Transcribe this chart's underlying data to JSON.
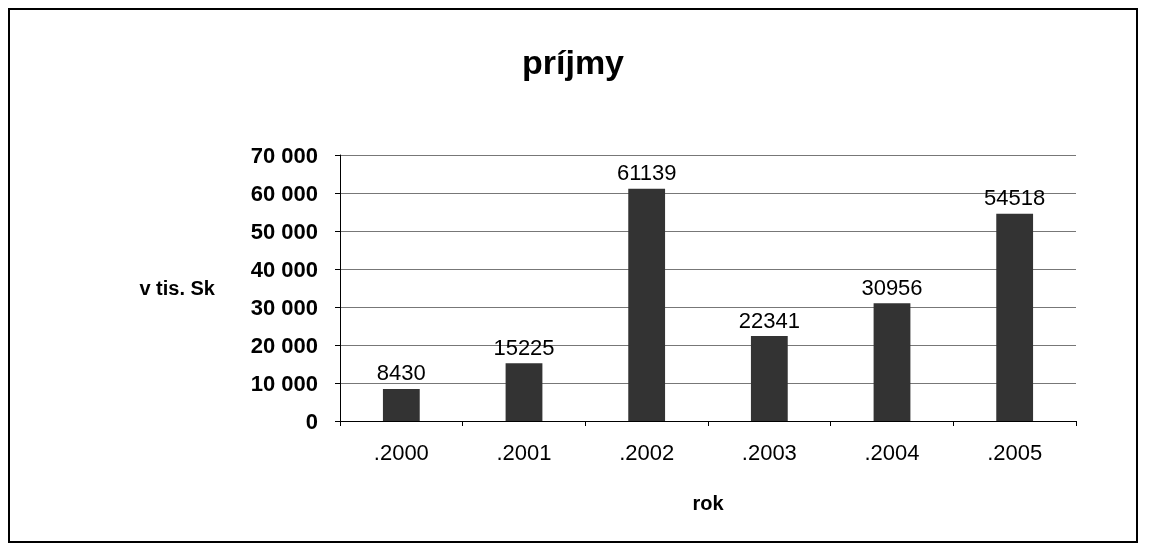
{
  "chart_data": {
    "type": "bar",
    "title": "príjmy",
    "xlabel": "rok",
    "ylabel": "v tis. Sk",
    "categories": [
      ".2000",
      ".2001",
      ".2002",
      ".2003",
      ".2004",
      ".2005"
    ],
    "values": [
      8430,
      15225,
      61139,
      22341,
      30956,
      54518
    ],
    "color": "#333333",
    "ylim": [
      0,
      70000
    ],
    "yticks": [
      0,
      {
        "value": 10000,
        "label": "10 000"
      },
      {
        "value": 20000,
        "label": "20 000"
      },
      {
        "value": 30000,
        "label": "30 000"
      },
      {
        "value": 40000,
        "label": "40 000"
      },
      {
        "value": 50000,
        "label": "50 000"
      },
      {
        "value": 60000,
        "label": "60 000"
      },
      {
        "value": 70000,
        "label": "70 000"
      }
    ],
    "grid": "y",
    "data_labels": true
  }
}
